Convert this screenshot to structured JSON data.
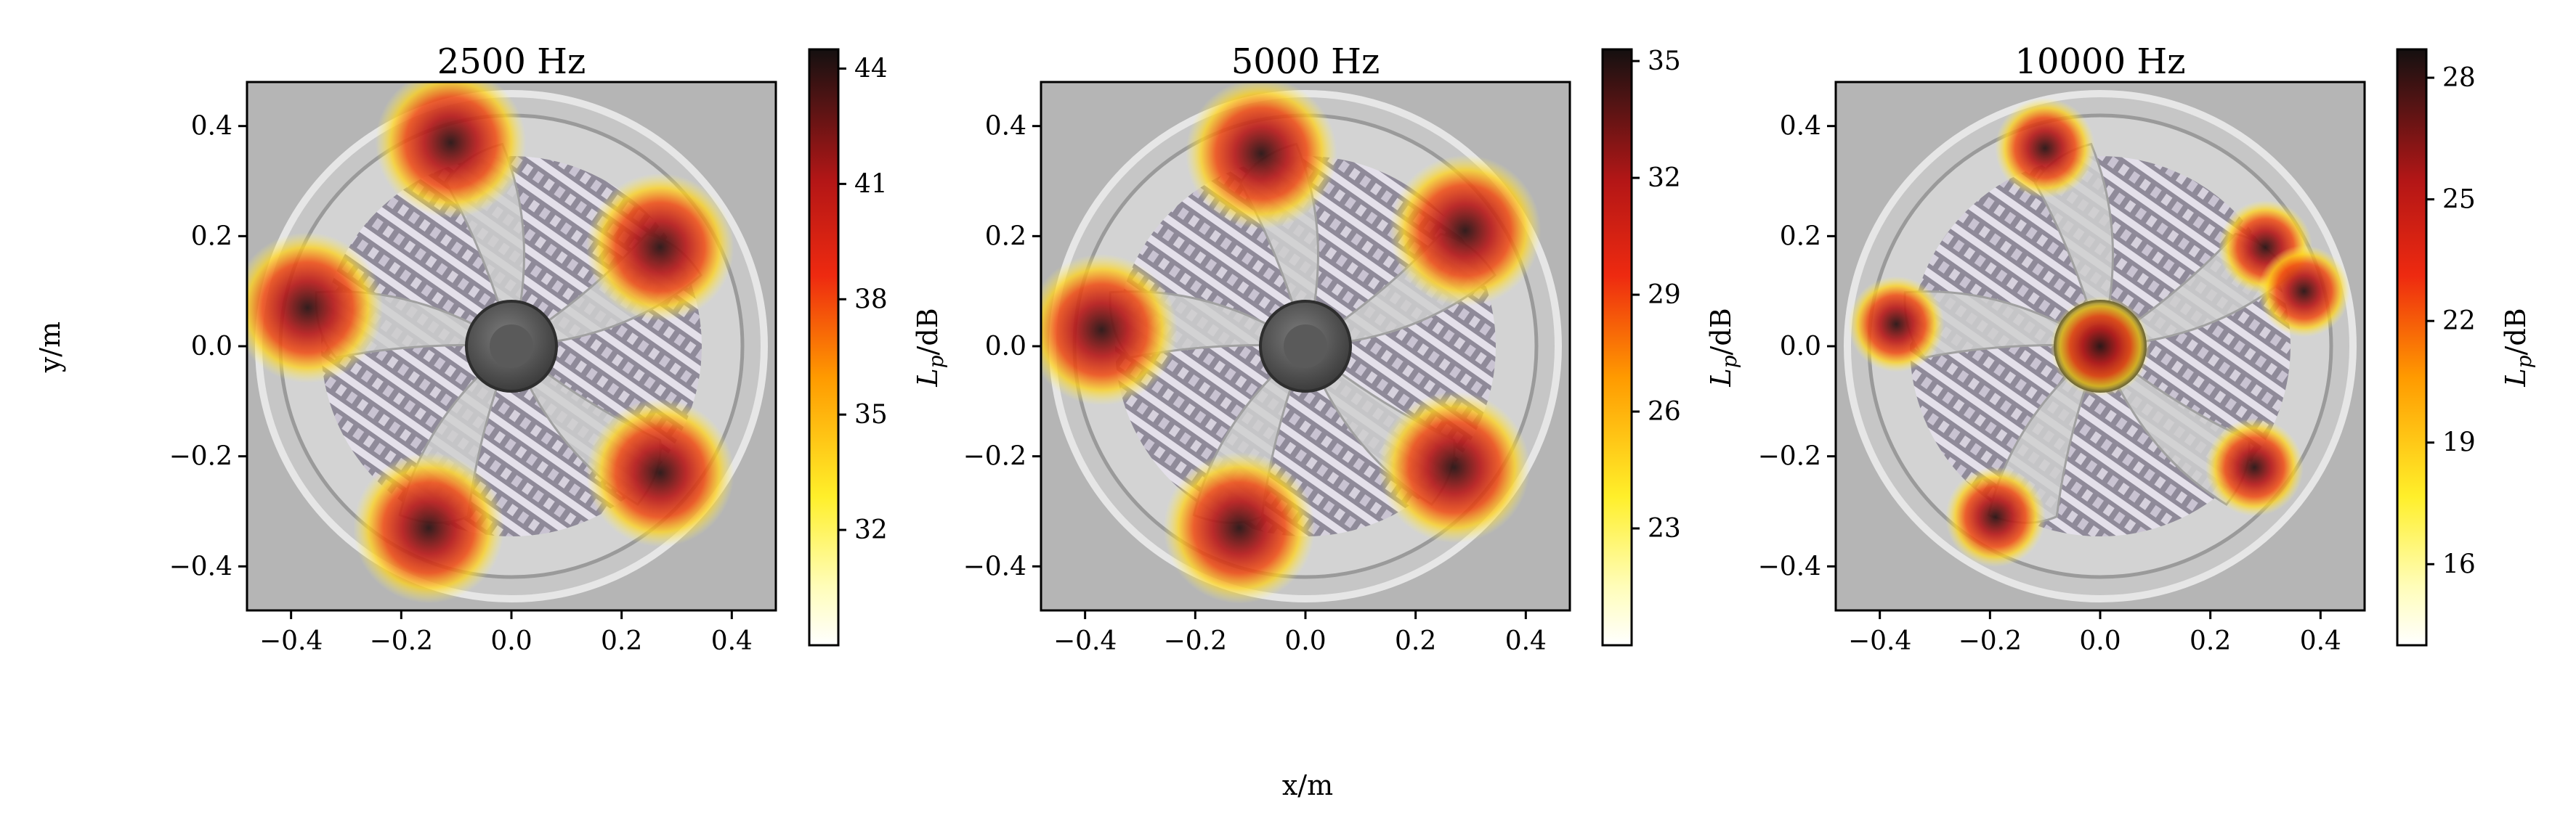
{
  "figure": {
    "xlabel": "x/m",
    "ylabel": "y/m"
  },
  "chart_data": [
    {
      "type": "heatmap",
      "title": "2500 Hz",
      "xlim": [
        -0.48,
        0.48
      ],
      "ylim": [
        -0.48,
        0.48
      ],
      "xticks": [
        "−0.4",
        "−0.2",
        "0.0",
        "0.2",
        "0.4"
      ],
      "yticks": [
        "−0.4",
        "−0.2",
        "0.0",
        "0.2",
        "0.4"
      ],
      "colorbar": {
        "label": "L_p/dB",
        "range": [
          29,
          44.5
        ],
        "ticks": [
          "32",
          "35",
          "38",
          "41",
          "44"
        ]
      },
      "hotspots": [
        {
          "x": -0.37,
          "y": 0.07,
          "level": 44
        },
        {
          "x": -0.11,
          "y": 0.37,
          "level": 44
        },
        {
          "x": 0.27,
          "y": 0.18,
          "level": 43
        },
        {
          "x": 0.27,
          "y": -0.23,
          "level": 43
        },
        {
          "x": -0.15,
          "y": -0.33,
          "level": 44
        }
      ]
    },
    {
      "type": "heatmap",
      "title": "5000 Hz",
      "xlim": [
        -0.48,
        0.48
      ],
      "ylim": [
        -0.48,
        0.48
      ],
      "xticks": [
        "−0.4",
        "−0.2",
        "0.0",
        "0.2",
        "0.4"
      ],
      "yticks": [
        "−0.4",
        "−0.2",
        "0.0",
        "0.2",
        "0.4"
      ],
      "colorbar": {
        "label": "L_p/dB",
        "range": [
          20,
          35.3
        ],
        "ticks": [
          "23",
          "26",
          "29",
          "32",
          "35"
        ]
      },
      "hotspots": [
        {
          "x": -0.37,
          "y": 0.03,
          "level": 35
        },
        {
          "x": -0.08,
          "y": 0.35,
          "level": 35
        },
        {
          "x": 0.29,
          "y": 0.21,
          "level": 35
        },
        {
          "x": 0.27,
          "y": -0.22,
          "level": 35
        },
        {
          "x": -0.12,
          "y": -0.33,
          "level": 35
        }
      ]
    },
    {
      "type": "heatmap",
      "title": "10000 Hz",
      "xlim": [
        -0.48,
        0.48
      ],
      "ylim": [
        -0.48,
        0.48
      ],
      "xticks": [
        "−0.4",
        "−0.2",
        "0.0",
        "0.2",
        "0.4"
      ],
      "yticks": [
        "−0.4",
        "−0.2",
        "0.0",
        "0.2",
        "0.4"
      ],
      "colorbar": {
        "label": "L_p/dB",
        "range": [
          14,
          28.7
        ],
        "ticks": [
          "16",
          "19",
          "22",
          "25",
          "28"
        ]
      },
      "hotspots": [
        {
          "x": -0.1,
          "y": 0.36,
          "level": 28
        },
        {
          "x": 0.0,
          "y": 0.0,
          "level": 28
        },
        {
          "x": -0.19,
          "y": -0.31,
          "level": 28
        },
        {
          "x": 0.28,
          "y": -0.22,
          "level": 27
        },
        {
          "x": -0.37,
          "y": 0.04,
          "level": 26
        },
        {
          "x": 0.3,
          "y": 0.18,
          "level": 25
        },
        {
          "x": 0.37,
          "y": 0.1,
          "level": 24
        }
      ]
    }
  ]
}
